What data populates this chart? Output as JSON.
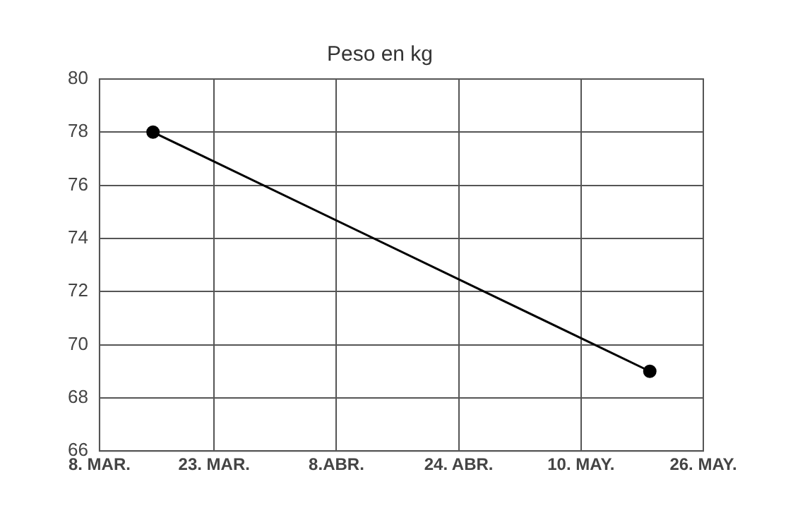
{
  "chart_data": {
    "type": "line",
    "title": "Peso en kg",
    "x": [
      "--03-15",
      "--05-19"
    ],
    "series": [
      {
        "color": "#000000",
        "values": [
          78,
          69
        ]
      }
    ],
    "xlim": [
      "--03-08",
      "--05-26"
    ],
    "xticks": [
      {
        "value": "--03-08",
        "label": "8. MAR."
      },
      {
        "value": "--03-23",
        "label": "23. MAR."
      },
      {
        "value": "--04-08",
        "label": "8.ABR."
      },
      {
        "value": "--04-24",
        "label": "24. ABR."
      },
      {
        "value": "--05-10",
        "label": "10. MAY."
      },
      {
        "value": "--05-26",
        "label": "26. MAY."
      }
    ],
    "ylim": [
      66,
      80
    ],
    "yticks": [
      66,
      68,
      70,
      72,
      74,
      76,
      78,
      80
    ],
    "grid": true,
    "legend": false,
    "marker": "circle",
    "line_style": "solid"
  }
}
